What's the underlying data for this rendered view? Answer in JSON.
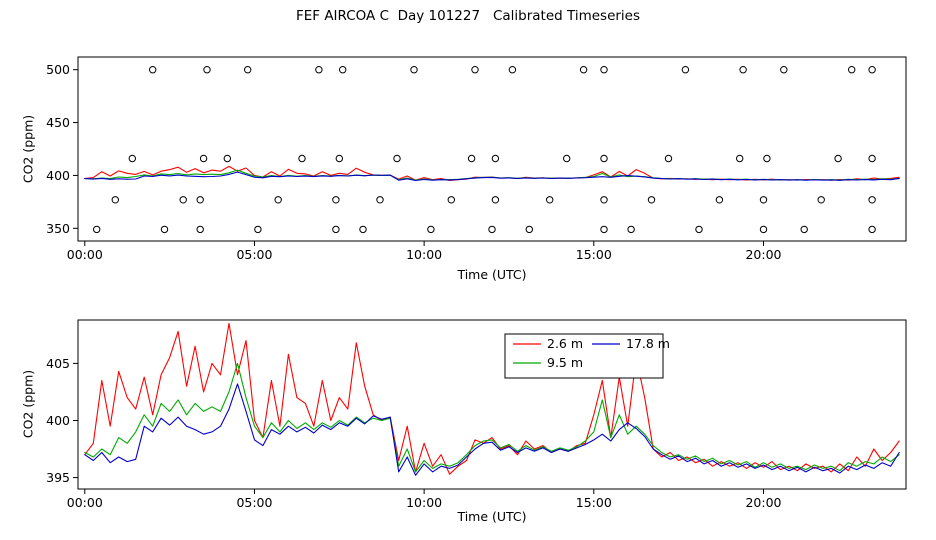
{
  "title": "FEF AIRCOA C  Day 101227   Calibrated Timeseries",
  "chart_data": {
    "type": "line",
    "title": "FEF AIRCOA C  Day 101227   Calibrated Timeseries",
    "xlabel": "Time (UTC)",
    "ylabel": "CO2 (ppm)",
    "x_start_hours": 0,
    "x_step_hours": 0.25,
    "xlim": [
      -0.2,
      24.2
    ],
    "xticks": {
      "hours": [
        0,
        5,
        10,
        15,
        20
      ],
      "labels": [
        "00:00",
        "05:00",
        "10:00",
        "15:00",
        "20:00"
      ]
    },
    "series": [
      {
        "name": "2.6 m",
        "color": "#ff0000",
        "values": [
          397.0,
          398.0,
          403.5,
          399.5,
          404.3,
          402.0,
          401.0,
          403.8,
          400.5,
          404.0,
          405.5,
          407.8,
          403.0,
          406.5,
          402.5,
          405.0,
          404.0,
          408.5,
          404.0,
          407.0,
          400.0,
          398.5,
          403.5,
          399.5,
          405.8,
          402.0,
          401.5,
          399.5,
          403.5,
          400.0,
          402.0,
          401.0,
          406.8,
          403.0,
          400.5,
          400.0,
          400.3,
          396.5,
          399.5,
          395.5,
          398.0,
          396.0,
          397.0,
          395.3,
          396.0,
          396.5,
          398.3,
          398.0,
          398.5,
          397.5,
          397.8,
          397.0,
          398.2,
          397.5,
          397.8,
          397.2,
          397.5,
          397.3,
          397.8,
          398.0,
          400.5,
          403.5,
          398.5,
          403.8,
          399.5,
          405.5,
          402.0,
          397.5,
          396.8,
          397.2,
          396.5,
          396.8,
          396.3,
          396.6,
          396.0,
          396.4,
          396.0,
          396.3,
          395.8,
          396.3,
          395.9,
          396.4,
          395.7,
          396.0,
          395.6,
          396.2,
          395.8,
          396.0,
          395.5,
          396.2,
          395.6,
          396.8,
          396.0,
          397.5,
          396.5,
          397.2,
          398.2
        ]
      },
      {
        "name": "9.5 m",
        "color": "#00aa00",
        "values": [
          397.2,
          396.8,
          397.5,
          397.0,
          398.5,
          398.0,
          399.0,
          400.5,
          399.5,
          401.5,
          400.8,
          401.8,
          400.5,
          401.5,
          400.8,
          401.2,
          400.8,
          402.5,
          405.0,
          402.0,
          399.5,
          398.5,
          399.8,
          399.0,
          400.0,
          399.3,
          399.8,
          399.2,
          399.8,
          399.4,
          400.0,
          399.6,
          400.3,
          399.8,
          400.2,
          400.0,
          400.2,
          396.0,
          397.5,
          395.5,
          396.5,
          395.8,
          396.2,
          396.0,
          396.3,
          397.0,
          397.8,
          398.2,
          398.3,
          397.6,
          397.9,
          397.3,
          397.8,
          397.4,
          397.7,
          397.3,
          397.6,
          397.4,
          397.7,
          398.2,
          399.0,
          401.8,
          398.5,
          400.5,
          398.8,
          399.5,
          398.8,
          397.8,
          397.2,
          396.8,
          397.0,
          396.6,
          396.9,
          396.4,
          396.7,
          396.2,
          396.5,
          396.1,
          396.4,
          395.9,
          396.3,
          395.9,
          396.2,
          395.8,
          396.0,
          395.7,
          396.1,
          395.8,
          396.0,
          395.6,
          396.3,
          396.0,
          396.4,
          396.2,
          396.8,
          396.4,
          397.0
        ]
      },
      {
        "name": "17.8 m",
        "color": "#0000cc",
        "values": [
          397.0,
          396.5,
          397.2,
          396.3,
          396.8,
          396.4,
          396.6,
          399.5,
          399.0,
          400.2,
          399.6,
          400.3,
          399.5,
          399.2,
          398.8,
          399.0,
          399.5,
          401.0,
          403.2,
          400.8,
          398.3,
          397.8,
          399.2,
          398.8,
          399.5,
          399.0,
          399.4,
          398.9,
          399.6,
          399.2,
          399.8,
          399.5,
          400.2,
          399.7,
          400.4,
          400.1,
          400.3,
          395.5,
          396.8,
          395.2,
          396.2,
          395.5,
          396.0,
          395.8,
          396.1,
          396.8,
          397.5,
          398.0,
          398.1,
          397.4,
          397.7,
          397.2,
          397.6,
          397.3,
          397.6,
          397.2,
          397.5,
          397.3,
          397.6,
          397.9,
          398.3,
          398.8,
          398.2,
          399.2,
          399.8,
          399.3,
          398.6,
          397.5,
          397.0,
          396.6,
          396.9,
          396.4,
          396.7,
          396.2,
          396.5,
          396.0,
          396.3,
          395.9,
          396.2,
          395.8,
          396.1,
          395.7,
          396.0,
          395.6,
          395.9,
          395.5,
          395.9,
          395.6,
          395.8,
          395.4,
          396.0,
          395.7,
          396.1,
          395.8,
          396.3,
          396.0,
          397.2
        ]
      }
    ],
    "panels": [
      {
        "id": "top",
        "ylim": [
          338,
          512
        ],
        "yticks": [
          350,
          400,
          450,
          500
        ],
        "yticklabels": [
          "350",
          "400",
          "450",
          "500"
        ],
        "show_calibration_points": true,
        "show_legend": false
      },
      {
        "id": "bottom",
        "ylim": [
          394.0,
          408.8
        ],
        "yticks": [
          395,
          400,
          405
        ],
        "yticklabels": [
          "395",
          "400",
          "405"
        ],
        "show_calibration_points": false,
        "show_legend": true
      }
    ],
    "calibration_points": {
      "levels": [
        500,
        416,
        377,
        349
      ],
      "times_hours": [
        [
          2.0,
          3.6,
          4.8,
          6.9,
          7.6,
          9.7,
          11.5,
          12.6,
          14.7,
          15.3,
          17.7,
          19.4,
          20.6,
          22.6,
          23.2
        ],
        [
          1.4,
          3.5,
          4.2,
          6.4,
          7.5,
          9.2,
          11.4,
          12.1,
          14.2,
          15.3,
          17.2,
          19.3,
          20.1,
          22.2,
          23.2
        ],
        [
          0.9,
          2.9,
          3.4,
          5.7,
          7.4,
          8.7,
          10.8,
          12.1,
          13.7,
          15.3,
          16.7,
          18.7,
          20.0,
          21.7,
          23.2
        ],
        [
          0.35,
          2.35,
          3.4,
          5.1,
          7.4,
          8.2,
          10.2,
          12.0,
          13.1,
          15.3,
          16.1,
          18.1,
          20.0,
          21.2,
          23.2
        ]
      ]
    },
    "legend": {
      "columns": 2,
      "entries": [
        "2.6 m",
        "9.5 m",
        "17.8 m"
      ]
    },
    "grid": false,
    "legend_position": "top-center of bottom panel"
  }
}
